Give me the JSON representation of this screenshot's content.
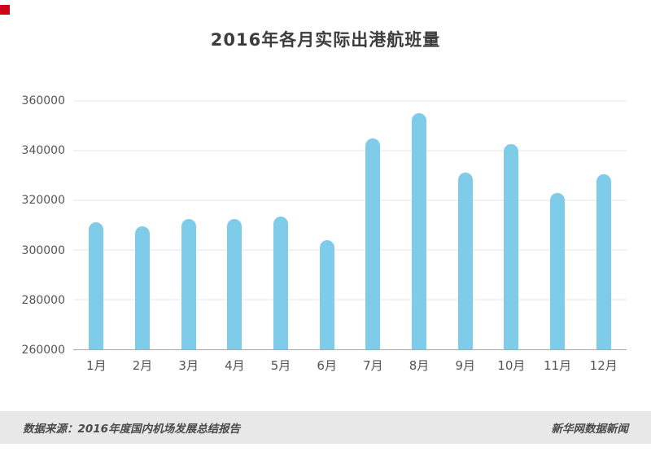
{
  "title": "2016年各月实际出港航班量",
  "footer": {
    "source": "数据来源：2016年度国内机场发展总结报告",
    "credit": "新华网数据新闻"
  },
  "colors": {
    "bar": "#7ECBEA",
    "accent_red": "#D0021B",
    "footer_bg": "#E8E8E8",
    "grid": "#E5E5E5",
    "axis": "#AAAAAA",
    "title_text": "#3D3D3D",
    "tick_text": "#555555"
  },
  "chart_data": {
    "type": "bar",
    "title": "2016年各月实际出港航班量",
    "categories": [
      "1月",
      "2月",
      "3月",
      "4月",
      "5月",
      "6月",
      "7月",
      "8月",
      "9月",
      "10月",
      "11月",
      "12月"
    ],
    "values": [
      311000,
      309500,
      312500,
      312500,
      313500,
      304000,
      345000,
      355000,
      331000,
      342500,
      323000,
      330500
    ],
    "xlabel": "",
    "ylabel": "",
    "ylim": [
      260000,
      360000
    ],
    "yticks": [
      260000,
      280000,
      300000,
      320000,
      340000,
      360000
    ],
    "grid": true,
    "legend_position": "none"
  }
}
